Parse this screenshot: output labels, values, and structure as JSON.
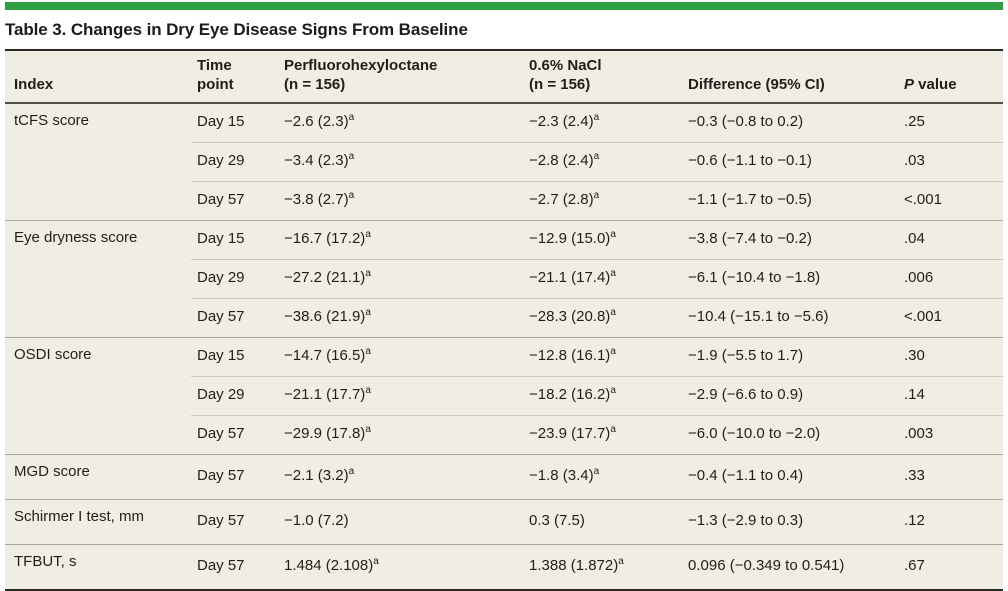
{
  "colors": {
    "accent_green": "#2f9e41",
    "table_background": "#f0eee3",
    "rule_dark": "#2b2a24",
    "group_separator": "#a9a79a",
    "subrow_separator": "#cdcabd"
  },
  "title": "Table 3. Changes in Dry Eye Disease Signs From Baseline",
  "table": {
    "header": {
      "index_label": "Index",
      "time_label": "Time\npoint",
      "pfh_label": "Perfluorohexyloctane\n(n = 156)",
      "nacl_label": "0.6% NaCl\n(n = 156)",
      "diff_label": "Difference (95% CI)",
      "p_label_italic": "P",
      "p_label_rest": " value"
    },
    "footnote_marker": "a",
    "groups": [
      {
        "index": "tCFS score",
        "rows": [
          {
            "time": "Day 15",
            "pfh": "−2.6 (2.3)^a",
            "nacl": "−2.3 (2.4)^a",
            "diff": "−0.3 (−0.8 to 0.2)",
            "p": ".25"
          },
          {
            "time": "Day 29",
            "pfh": "−3.4 (2.3)^a",
            "nacl": "−2.8 (2.4)^a",
            "diff": "−0.6 (−1.1 to −0.1)",
            "p": ".03"
          },
          {
            "time": "Day 57",
            "pfh": "−3.8 (2.7)^a",
            "nacl": "−2.7 (2.8)^a",
            "diff": "−1.1 (−1.7 to −0.5)",
            "p": "<.001"
          }
        ]
      },
      {
        "index": "Eye dryness score",
        "rows": [
          {
            "time": "Day 15",
            "pfh": "−16.7 (17.2)^a",
            "nacl": "−12.9 (15.0)^a",
            "diff": "−3.8 (−7.4 to −0.2)",
            "p": ".04"
          },
          {
            "time": "Day 29",
            "pfh": "−27.2 (21.1)^a",
            "nacl": "−21.1 (17.4)^a",
            "diff": "−6.1 (−10.4 to −1.8)",
            "p": ".006"
          },
          {
            "time": "Day 57",
            "pfh": "−38.6 (21.9)^a",
            "nacl": "−28.3 (20.8)^a",
            "diff": "−10.4 (−15.1 to −5.6)",
            "p": "<.001"
          }
        ]
      },
      {
        "index": "OSDI score",
        "rows": [
          {
            "time": "Day 15",
            "pfh": "−14.7 (16.5)^a",
            "nacl": "−12.8 (16.1)^a",
            "diff": "−1.9 (−5.5 to 1.7)",
            "p": ".30"
          },
          {
            "time": "Day 29",
            "pfh": "−21.1 (17.7)^a",
            "nacl": "−18.2 (16.2)^a",
            "diff": "−2.9 (−6.6 to 0.9)",
            "p": ".14"
          },
          {
            "time": "Day 57",
            "pfh": "−29.9 (17.8)^a",
            "nacl": "−23.9 (17.7)^a",
            "diff": "−6.0 (−10.0 to −2.0)",
            "p": ".003"
          }
        ]
      },
      {
        "index": "MGD score",
        "rows": [
          {
            "time": "Day 57",
            "pfh": "−2.1 (3.2)^a",
            "nacl": "−1.8 (3.4)^a",
            "diff": "−0.4 (−1.1 to 0.4)",
            "p": ".33"
          }
        ]
      },
      {
        "index": "Schirmer I test, mm",
        "rows": [
          {
            "time": "Day 57",
            "pfh": "−1.0 (7.2)",
            "nacl": "0.3 (7.5)",
            "diff": "−1.3 (−2.9 to 0.3)",
            "p": ".12"
          }
        ]
      },
      {
        "index": "TFBUT, s",
        "rows": [
          {
            "time": "Day 57",
            "pfh": "1.484 (2.108)^a",
            "nacl": "1.388 (1.872)^a",
            "diff": "0.096 (−0.349 to 0.541)",
            "p": ".67"
          }
        ]
      }
    ]
  }
}
